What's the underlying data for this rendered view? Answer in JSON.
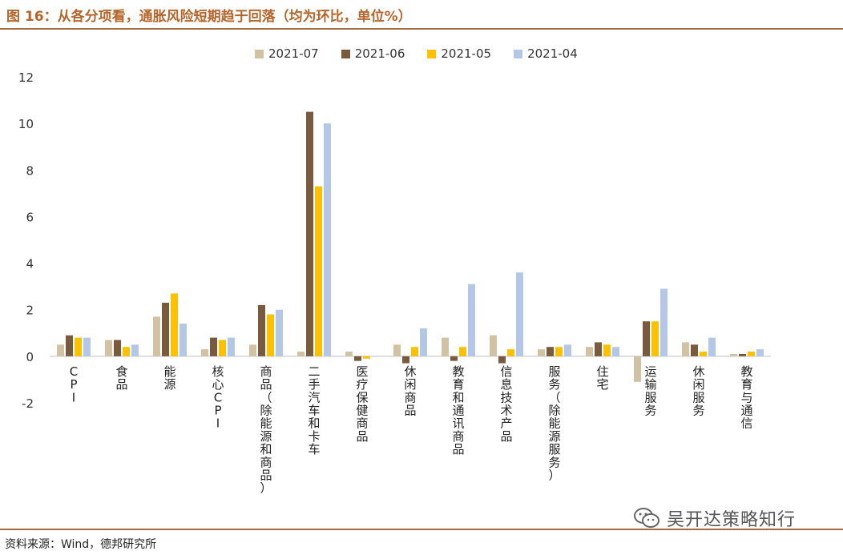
{
  "header": {
    "title": "图 16：从各分项看，通胀风险短期趋于回落（均为环比，单位%）"
  },
  "footer": {
    "source": "资料来源：Wind，德邦研究所",
    "watermark": "吴开达策略知行"
  },
  "icons": {
    "watermark_icon": "wechat-icon"
  },
  "colors": {
    "accent": "#a46b43",
    "title": "#b5652a",
    "s2021_07": "#d2c2a4",
    "s2021_06": "#7a5a3e",
    "s2021_05": "#ffc000",
    "s2021_04": "#b4c7e7"
  },
  "chart_data": {
    "type": "bar",
    "title": "",
    "xlabel": "",
    "ylabel": "",
    "ylim": [
      -2,
      12
    ],
    "yticks": [
      -2,
      0,
      2,
      4,
      6,
      8,
      10,
      12
    ],
    "grid": false,
    "legend_position": "top-center",
    "categories": [
      "CPI",
      "食品",
      "能源",
      "核心CPI",
      "商品（除能源和商品）",
      "二手汽车和卡车",
      "医疗保健商品",
      "休闲商品",
      "教育和通讯商品",
      "信息技术产品",
      "服务（除能源服务）",
      "住宅",
      "运输服务",
      "休闲服务",
      "教育与通信"
    ],
    "series": [
      {
        "name": "2021-07",
        "color": "#d2c2a4",
        "values": [
          0.5,
          0.7,
          1.7,
          0.3,
          0.5,
          0.2,
          0.2,
          0.5,
          0.8,
          0.9,
          0.3,
          0.4,
          -1.1,
          0.6,
          0.1
        ]
      },
      {
        "name": "2021-06",
        "color": "#7a5a3e",
        "values": [
          0.9,
          0.7,
          2.3,
          0.8,
          2.2,
          10.5,
          -0.2,
          -0.3,
          -0.2,
          -0.3,
          0.4,
          0.6,
          1.5,
          0.5,
          0.1
        ]
      },
      {
        "name": "2021-05",
        "color": "#ffc000",
        "values": [
          0.8,
          0.4,
          2.7,
          0.7,
          1.8,
          7.3,
          -0.1,
          0.4,
          0.4,
          0.3,
          0.4,
          0.5,
          1.5,
          0.2,
          0.2
        ]
      },
      {
        "name": "2021-04",
        "color": "#b4c7e7",
        "values": [
          0.8,
          0.5,
          1.4,
          0.8,
          2.0,
          10.0,
          0.0,
          1.2,
          3.1,
          3.6,
          0.5,
          0.4,
          2.9,
          0.8,
          0.3
        ]
      }
    ]
  }
}
